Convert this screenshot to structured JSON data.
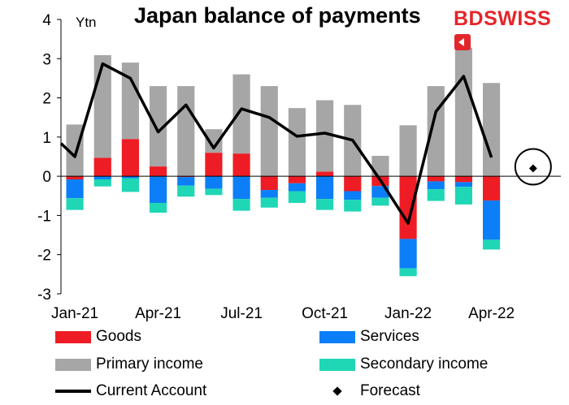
{
  "header": {
    "title": "Japan balance of payments",
    "unit": "Ytn",
    "logo_bd": "BD",
    "logo_swiss": "SWISS"
  },
  "colors": {
    "goods": "#ee1c24",
    "services": "#0c7ef7",
    "primary": "#a6a6a6",
    "secondary": "#1fd6b5",
    "current": "#000000",
    "forecast": "#000000"
  },
  "legend": {
    "goods": "Goods",
    "services": "Services",
    "primary": "Primary income",
    "secondary": "Secondary income",
    "current": "Current Account",
    "forecast": "Forecast"
  },
  "chart_data": {
    "type": "bar",
    "stacked": true,
    "categories": [
      "Jan-21",
      "Feb-21",
      "Mar-21",
      "Apr-21",
      "May-21",
      "Jun-21",
      "Jul-21",
      "Aug-21",
      "Sep-21",
      "Oct-21",
      "Nov-21",
      "Dec-21",
      "Jan-22",
      "Feb-22",
      "Mar-22",
      "Apr-22",
      "May-22"
    ],
    "x_tick_labels": [
      "Jan-21",
      "Apr-21",
      "Jul-21",
      "Oct-21",
      "Jan-22",
      "Apr-22"
    ],
    "x_tick_indices": [
      0,
      3,
      6,
      9,
      12,
      15
    ],
    "ylim": [
      -3,
      4
    ],
    "yticks": [
      -3,
      -2,
      -1,
      0,
      1,
      2,
      3,
      4
    ],
    "series": [
      {
        "name": "Goods",
        "key": "goods",
        "values": [
          -0.08,
          0.47,
          0.95,
          0.25,
          -0.02,
          0.6,
          0.58,
          -0.35,
          -0.18,
          0.12,
          -0.38,
          -0.25,
          -1.6,
          -0.13,
          -0.15,
          -0.62,
          null
        ]
      },
      {
        "name": "Services",
        "key": "services",
        "values": [
          -0.48,
          -0.08,
          -0.05,
          -0.68,
          -0.22,
          -0.32,
          -0.58,
          -0.2,
          -0.2,
          -0.58,
          -0.22,
          -0.3,
          -0.75,
          -0.2,
          -0.12,
          -1.0,
          null
        ]
      },
      {
        "name": "Primary income",
        "key": "primary",
        "values": [
          1.32,
          2.62,
          1.95,
          2.05,
          2.3,
          0.6,
          2.02,
          2.3,
          1.74,
          1.82,
          1.82,
          0.52,
          1.3,
          2.3,
          3.28,
          2.38,
          null
        ]
      },
      {
        "name": "Secondary income",
        "key": "secondary",
        "values": [
          -0.3,
          -0.18,
          -0.35,
          -0.25,
          -0.28,
          -0.16,
          -0.3,
          -0.25,
          -0.3,
          -0.28,
          -0.3,
          -0.2,
          -0.2,
          -0.3,
          -0.45,
          -0.25,
          null
        ]
      }
    ],
    "current_account": {
      "name": "Current Account",
      "values": [
        0.84,
        0.5,
        2.87,
        2.5,
        1.13,
        1.82,
        0.72,
        1.72,
        1.5,
        1.02,
        1.1,
        0.92,
        -0.1,
        -1.2,
        1.65,
        2.55,
        0.48
      ]
    },
    "forecast": {
      "name": "Forecast",
      "index": 17,
      "value": 0.2
    },
    "x_points": [
      -0.5,
      0,
      1,
      2,
      3,
      4,
      5,
      6,
      7,
      8,
      9,
      10,
      11,
      12,
      13,
      14,
      15
    ]
  }
}
